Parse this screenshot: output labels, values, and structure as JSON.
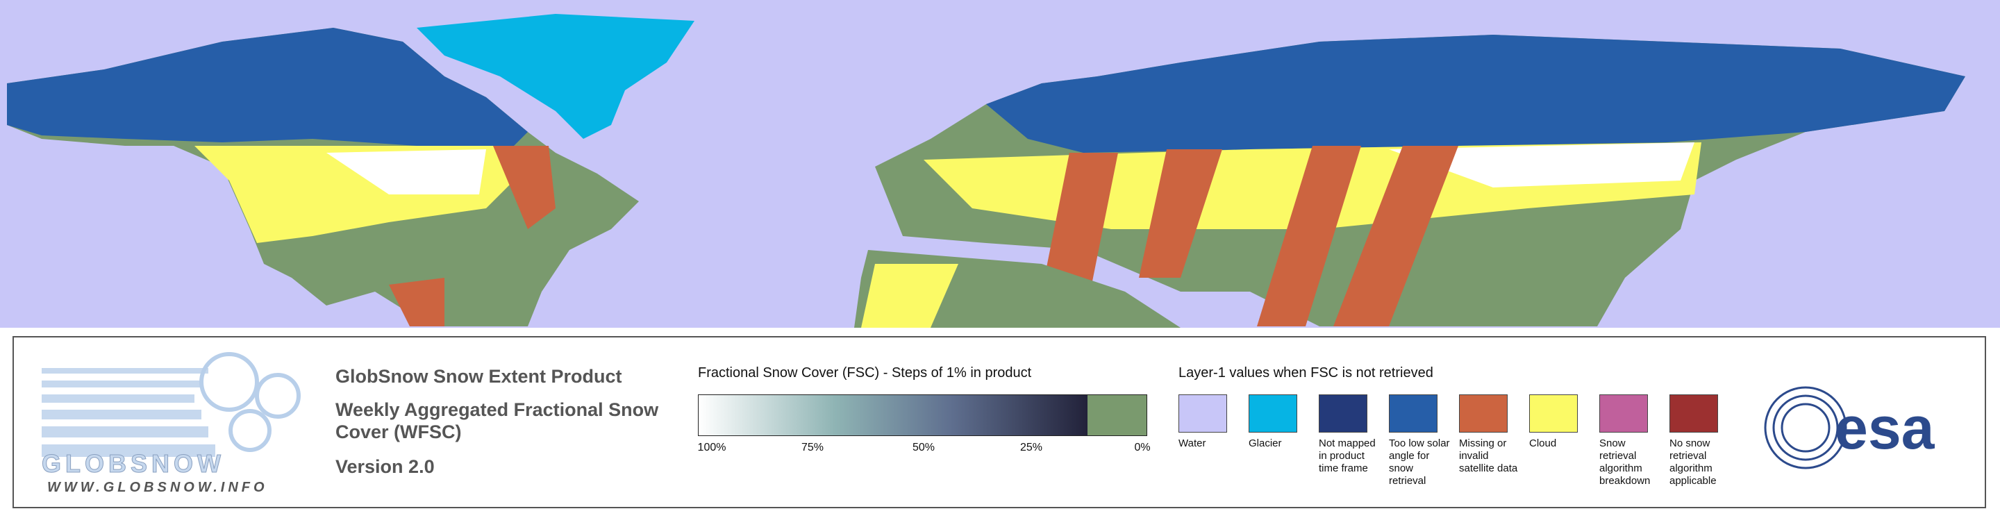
{
  "logo": {
    "name": "GLOBSNOW",
    "url": "WWW.GLOBSNOW.INFO",
    "agency": "esa"
  },
  "product": {
    "title": "GlobSnow Snow Extent Product",
    "subtitle": "Weekly Aggregated Fractional Snow Cover (WFSC)",
    "version": "Version 2.0"
  },
  "fsc_scale": {
    "title": "Fractional Snow Cover (FSC) - Steps of 1% in product",
    "ticks": [
      "100%",
      "75%",
      "50%",
      "25%",
      "0%"
    ],
    "zero_color": "#7a9a6e"
  },
  "layer1": {
    "title": "Layer-1 values when FSC is not retrieved",
    "items": [
      {
        "label": "Water",
        "color": "#c8c6f8"
      },
      {
        "label": "Glacier",
        "color": "#06b4e4"
      },
      {
        "label": "Not mapped in product time frame",
        "color": "#243a7a"
      },
      {
        "label": "Too low solar angle for snow retrieval",
        "color": "#265ea8"
      },
      {
        "label": "Missing or invalid satellite data",
        "color": "#cc6440"
      },
      {
        "label": "Cloud",
        "color": "#fbfa66"
      },
      {
        "label": "Snow retrieval algorithm breakdown",
        "color": "#c0609c"
      },
      {
        "label": "No snow retrieval algorithm applicable",
        "color": "#9c3030"
      }
    ]
  }
}
